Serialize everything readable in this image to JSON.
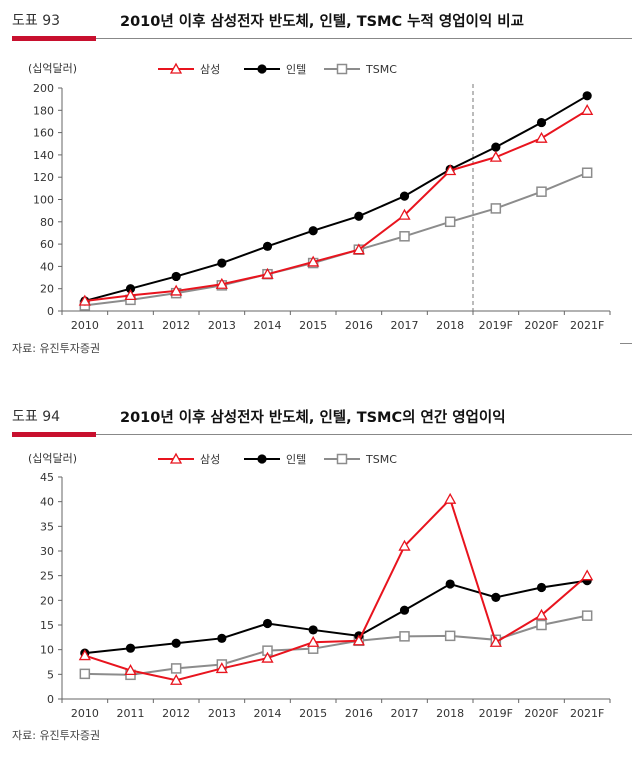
{
  "figures": [
    {
      "label": "도표 93",
      "title": "2010년 이후 삼성전자 반도체, 인텔, TSMC 누적 영업이익 비교",
      "source": "자료: 유진투자증권",
      "chart_data": {
        "type": "line",
        "unit_label": "(십억달러)",
        "categories": [
          "2010",
          "2011",
          "2012",
          "2013",
          "2014",
          "2015",
          "2016",
          "2017",
          "2018",
          "2019F",
          "2020F",
          "2021F"
        ],
        "ylim": [
          0,
          200
        ],
        "yticks": [
          0,
          20,
          40,
          60,
          80,
          100,
          120,
          140,
          160,
          180,
          200
        ],
        "forecast_divider_after": "2018",
        "legend_position": "top",
        "series": [
          {
            "name": "삼성",
            "color": "#e8141e",
            "marker": "triangle-open",
            "values": [
              9,
              14,
              18,
              24,
              33,
              44,
              55,
              86,
              126,
              138,
              155,
              180
            ]
          },
          {
            "name": "인텔",
            "color": "#000000",
            "marker": "circle-filled",
            "values": [
              9,
              20,
              31,
              43,
              58,
              72,
              85,
              103,
              127,
              147,
              169,
              193
            ]
          },
          {
            "name": "TSMC",
            "color": "#8c8c8c",
            "marker": "square-open",
            "values": [
              5,
              10,
              16,
              23,
              33,
              43,
              55,
              67,
              80,
              92,
              107,
              124
            ]
          }
        ]
      }
    },
    {
      "label": "도표 94",
      "title": "2010년 이후 삼성전자 반도체, 인텔, TSMC의 연간 영업이익",
      "source": "자료: 유진투자증권",
      "chart_data": {
        "type": "line",
        "unit_label": "(십억달러)",
        "categories": [
          "2010",
          "2011",
          "2012",
          "2013",
          "2014",
          "2015",
          "2016",
          "2017",
          "2018",
          "2019F",
          "2020F",
          "2021F"
        ],
        "ylim": [
          0,
          45
        ],
        "yticks": [
          0,
          5,
          10,
          15,
          20,
          25,
          30,
          35,
          40,
          45
        ],
        "legend_position": "top",
        "series": [
          {
            "name": "삼성",
            "color": "#e8141e",
            "marker": "triangle-open",
            "values": [
              8.8,
              5.8,
              3.8,
              6.2,
              8.3,
              11.5,
              11.8,
              31,
              40.5,
              11.5,
              17,
              25
            ]
          },
          {
            "name": "인텔",
            "color": "#000000",
            "marker": "circle-filled",
            "values": [
              9.3,
              10.3,
              11.3,
              12.3,
              15.3,
              14,
              12.8,
              18,
              23.3,
              20.6,
              22.6,
              24
            ]
          },
          {
            "name": "TSMC",
            "color": "#8c8c8c",
            "marker": "square-open",
            "values": [
              5.1,
              4.9,
              6.2,
              7,
              9.8,
              10.2,
              11.8,
              12.7,
              12.8,
              12,
              15,
              16.9
            ]
          }
        ]
      }
    }
  ]
}
